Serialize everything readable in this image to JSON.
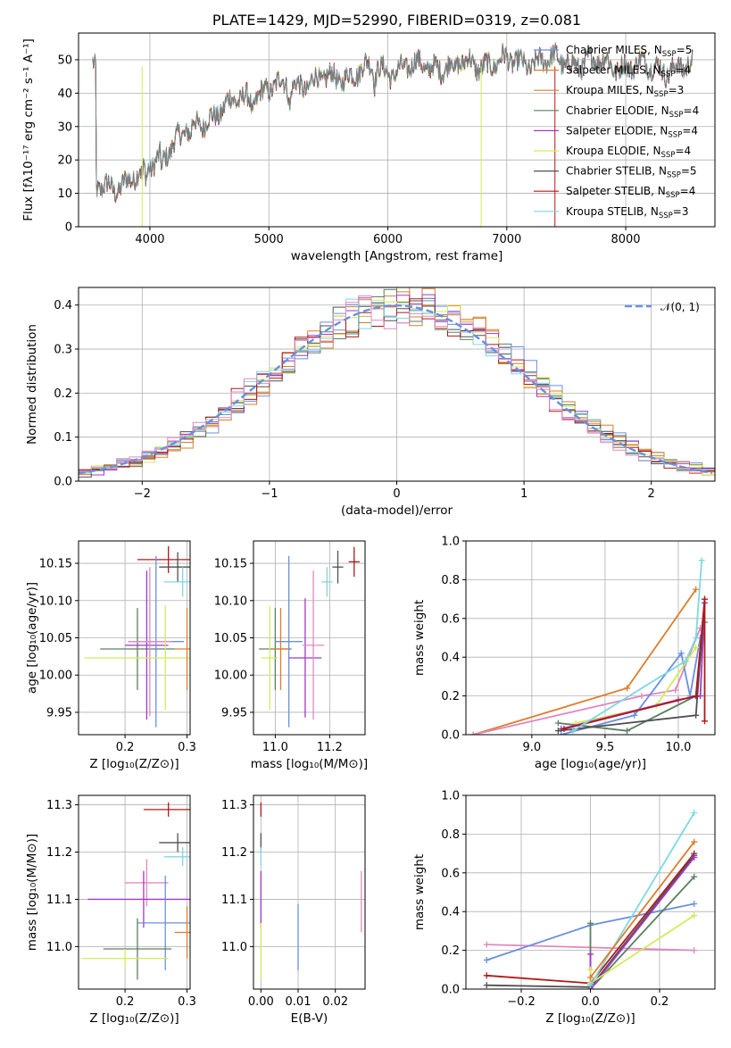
{
  "colors": {
    "Chabrier MILES": "#6a8fe0",
    "Salpeter MILES": "#e07b2a",
    "Kroupa MILES": "#c9862f",
    "Chabrier ELODIE": "#5a8060",
    "Salpeter ELODIE": "#a238c8",
    "Kroupa ELODIE": "#d4ea5a",
    "Chabrier STELIB": "#505050",
    "Salpeter STELIB": "#b01818",
    "Kroupa STELIB": "#7ed8e2",
    "pink": "#e387c0",
    "gauss": "#6a8fe0"
  },
  "chart_data": [
    {
      "id": "spectrum",
      "type": "line",
      "title": "PLATE=1429, MJD=52990, FIBERID=0319, z=0.081",
      "xlabel": "wavelength [Angstrom, rest frame]",
      "ylabel": "Flux [fλ10⁻¹⁷ erg cm⁻² s⁻¹ A⁻¹]",
      "xlim": [
        3400,
        8750
      ],
      "ylim": [
        0,
        58
      ],
      "xticks": [
        "4000",
        "5000",
        "6000",
        "7000",
        "8000"
      ],
      "yticks": [
        "0",
        "10",
        "20",
        "30",
        "40",
        "50"
      ],
      "legend_position": "top-right",
      "series": [
        {
          "name": "Chabrier MILES, N_SSP=5",
          "label": "Chabrier MILES, N",
          "sub": "SSP",
          "n": "=5",
          "color": "Chabrier MILES"
        },
        {
          "name": "Salpeter MILES, N_SSP=4",
          "label": "Salpeter MILES, N",
          "sub": "SSP",
          "n": "=4",
          "color": "Salpeter MILES"
        },
        {
          "name": "Kroupa MILES, N_SSP=3",
          "label": "Kroupa MILES, N",
          "sub": "SSP",
          "n": "=3",
          "color": "Kroupa MILES"
        },
        {
          "name": "Chabrier ELODIE, N_SSP=4",
          "label": "Chabrier ELODIE, N",
          "sub": "SSP",
          "n": "=4",
          "color": "Chabrier ELODIE"
        },
        {
          "name": "Salpeter ELODIE, N_SSP=4",
          "label": "Salpeter ELODIE, N",
          "sub": "SSP",
          "n": "=4",
          "color": "Salpeter ELODIE"
        },
        {
          "name": "Kroupa ELODIE, N_SSP=4",
          "label": "Kroupa ELODIE, N",
          "sub": "SSP",
          "n": "=4",
          "color": "Kroupa ELODIE"
        },
        {
          "name": "Chabrier STELIB, N_SSP=5",
          "label": "Chabrier STELIB, N",
          "sub": "SSP",
          "n": "=5",
          "color": "Chabrier STELIB"
        },
        {
          "name": "Salpeter STELIB, N_SSP=4",
          "label": "Salpeter STELIB, N",
          "sub": "SSP",
          "n": "=4",
          "color": "Salpeter STELIB"
        },
        {
          "name": "Kroupa STELIB, N_SSP=3",
          "label": "Kroupa STELIB, N",
          "sub": "SSP",
          "n": "=3",
          "color": "Kroupa STELIB"
        }
      ],
      "continuum": [
        [
          3550,
          11
        ],
        [
          3750,
          13
        ],
        [
          3900,
          15
        ],
        [
          4000,
          18
        ],
        [
          4100,
          22
        ],
        [
          4300,
          28
        ],
        [
          4500,
          33
        ],
        [
          4700,
          37
        ],
        [
          4900,
          40
        ],
        [
          5100,
          42
        ],
        [
          5300,
          43
        ],
        [
          5500,
          44
        ],
        [
          5800,
          47
        ],
        [
          6000,
          47
        ],
        [
          6300,
          48
        ],
        [
          6600,
          48.5
        ],
        [
          6900,
          49
        ],
        [
          7200,
          49.5
        ],
        [
          7500,
          49.5
        ],
        [
          7800,
          49
        ],
        [
          8100,
          48
        ],
        [
          8400,
          47.5
        ],
        [
          8750,
          47
        ]
      ]
    },
    {
      "id": "residuals",
      "type": "line",
      "xlabel": "(data-model)/error",
      "ylabel": "Normed distribution",
      "xlim": [
        -2.5,
        2.5
      ],
      "ylim": [
        0,
        0.44
      ],
      "xticks": [
        "−2",
        "−1",
        "0",
        "1",
        "2"
      ],
      "yticks": [
        "0.0",
        "0.1",
        "0.2",
        "0.3",
        "0.4"
      ],
      "legend": "𝒩(0, 1)",
      "legend_position": "top-right"
    },
    {
      "id": "age-vs-Z",
      "type": "scatter",
      "xlabel": "Z [log₁₀(Z/Z⊙)]",
      "ylabel": "age  [log₁₀(age/yr)]",
      "xlim": [
        0.125,
        0.305
      ],
      "ylim": [
        9.92,
        10.18
      ],
      "xticks": [
        "0.2",
        "0.3"
      ],
      "yticks": [
        "9.95",
        "10.00",
        "10.05",
        "10.10",
        "10.15"
      ],
      "points": [
        {
          "color": "Salpeter STELIB",
          "x": 0.27,
          "xerr": 0.05,
          "y": 10.155,
          "yerr": 0.018
        },
        {
          "color": "Chabrier STELIB",
          "x": 0.285,
          "xerr": 0.03,
          "y": 10.145,
          "yerr": 0.02
        },
        {
          "color": "Kroupa STELIB",
          "x": 0.293,
          "xerr": 0.03,
          "y": 10.125,
          "yerr": 0.02
        },
        {
          "color": "Chabrier ELODIE",
          "x": 0.22,
          "xerr": 0.06,
          "y": 10.035,
          "yerr": 0.055
        },
        {
          "color": "Salpeter ELODIE",
          "x": 0.235,
          "xerr": 0.035,
          "y": 10.04,
          "yerr": 0.1
        },
        {
          "color": "Chabrier MILES",
          "x": 0.25,
          "xerr": 0.045,
          "y": 10.045,
          "yerr": 0.115
        },
        {
          "color": "pink",
          "x": 0.24,
          "xerr": 0.035,
          "y": 10.045,
          "yerr": 0.1
        },
        {
          "color": "Kroupa ELODIE",
          "x": 0.265,
          "xerr": 0.13,
          "y": 10.023,
          "yerr": 0.07
        },
        {
          "color": "Salpeter MILES",
          "x": 0.3,
          "xerr": 0.02,
          "y": 10.035,
          "yerr": 0.055
        }
      ]
    },
    {
      "id": "age-vs-mass",
      "type": "scatter",
      "xlabel": "mass [log₁₀(M/M⊙)]",
      "ylabel": "",
      "xlim": [
        10.92,
        11.33
      ],
      "ylim": [
        9.92,
        10.18
      ],
      "xticks": [
        "11.0",
        "11.2"
      ],
      "yticks": [
        "9.95",
        "10.00",
        "10.05",
        "10.10",
        "10.15"
      ],
      "points": [
        {
          "color": "Salpeter STELIB",
          "x": 11.29,
          "xerr": 0.02,
          "y": 10.152,
          "yerr": 0.02
        },
        {
          "color": "Chabrier STELIB",
          "x": 11.23,
          "xerr": 0.02,
          "y": 10.145,
          "yerr": 0.022
        },
        {
          "color": "Kroupa STELIB",
          "x": 11.19,
          "xerr": 0.02,
          "y": 10.125,
          "yerr": 0.02
        },
        {
          "color": "Chabrier ELODIE",
          "x": 11.0,
          "xerr": 0.06,
          "y": 10.035,
          "yerr": 0.055
        },
        {
          "color": "Salpeter MILES",
          "x": 11.02,
          "xerr": 0.03,
          "y": 10.035,
          "yerr": 0.055
        },
        {
          "color": "Chabrier MILES",
          "x": 11.05,
          "xerr": 0.05,
          "y": 10.045,
          "yerr": 0.115
        },
        {
          "color": "Salpeter ELODIE",
          "x": 11.11,
          "xerr": 0.06,
          "y": 10.023,
          "yerr": 0.08
        },
        {
          "color": "pink",
          "x": 11.14,
          "xerr": 0.04,
          "y": 10.04,
          "yerr": 0.1
        },
        {
          "color": "Kroupa ELODIE",
          "x": 10.98,
          "xerr": 0.03,
          "y": 10.023,
          "yerr": 0.07
        }
      ]
    },
    {
      "id": "mass-weight-vs-age",
      "type": "line",
      "xlabel": "age  [log₁₀(age/yr)]",
      "ylabel": "mass weight",
      "xlim": [
        8.55,
        10.25
      ],
      "ylim": [
        0,
        1.0
      ],
      "xticks": [
        "9.0",
        "9.5",
        "10.0"
      ],
      "yticks": [
        "0.0",
        "0.2",
        "0.4",
        "0.6",
        "0.8",
        "1.0"
      ],
      "series": [
        {
          "color": "Salpeter MILES",
          "x": [
            8.6,
            9.65,
            10.12
          ],
          "y": [
            0.0,
            0.24,
            0.75
          ]
        },
        {
          "color": "pink",
          "x": [
            8.6,
            9.75,
            9.98,
            10.15
          ],
          "y": [
            0.0,
            0.2,
            0.23,
            0.55
          ]
        },
        {
          "color": "Chabrier MILES",
          "x": [
            9.2,
            9.7,
            10.02,
            10.08,
            10.15
          ],
          "y": [
            0.0,
            0.1,
            0.42,
            0.2,
            0.5
          ]
        },
        {
          "color": "Kroupa ELODIE",
          "x": [
            9.3,
            9.85,
            10.12
          ],
          "y": [
            0.06,
            0.15,
            0.45
          ]
        },
        {
          "color": "Chabrier ELODIE",
          "x": [
            9.18,
            9.65,
            10.12,
            10.18
          ],
          "y": [
            0.06,
            0.02,
            0.2,
            0.58
          ]
        },
        {
          "color": "Salpeter ELODIE",
          "x": [
            9.2,
            10.0,
            10.15,
            10.18
          ],
          "y": [
            0.03,
            0.18,
            0.2,
            0.68
          ]
        },
        {
          "color": "Chabrier STELIB",
          "x": [
            9.18,
            10.12,
            10.18
          ],
          "y": [
            0.02,
            0.1,
            0.7
          ]
        },
        {
          "color": "Salpeter STELIB",
          "x": [
            9.22,
            10.12,
            10.18,
            10.18
          ],
          "y": [
            0.03,
            0.2,
            0.7,
            0.07
          ]
        },
        {
          "color": "Kroupa STELIB",
          "x": [
            9.28,
            10.05,
            10.12,
            10.16
          ],
          "y": [
            0.02,
            0.38,
            0.5,
            0.9
          ]
        }
      ]
    },
    {
      "id": "mass-vs-Z",
      "type": "scatter",
      "xlabel": "Z [log₁₀(Z/Z⊙)]",
      "ylabel": "mass [log₁₀(M/M⊙)]",
      "xlim": [
        0.125,
        0.305
      ],
      "ylim": [
        10.91,
        11.32
      ],
      "xticks": [
        "0.2",
        "0.3"
      ],
      "yticks": [
        "11.0",
        "11.1",
        "11.2",
        "11.3"
      ],
      "points": [
        {
          "color": "Salpeter STELIB",
          "x": 0.27,
          "xerr": 0.04,
          "y": 11.29,
          "yerr": 0.015
        },
        {
          "color": "Chabrier STELIB",
          "x": 0.285,
          "xerr": 0.03,
          "y": 11.22,
          "yerr": 0.02
        },
        {
          "color": "Kroupa STELIB",
          "x": 0.293,
          "xerr": 0.03,
          "y": 11.19,
          "yerr": 0.02
        },
        {
          "color": "pink",
          "x": 0.235,
          "xerr": 0.035,
          "y": 11.135,
          "yerr": 0.05
        },
        {
          "color": "Salpeter ELODIE",
          "x": 0.23,
          "xerr": 0.09,
          "y": 11.1,
          "yerr": 0.06
        },
        {
          "color": "Chabrier MILES",
          "x": 0.265,
          "xerr": 0.045,
          "y": 11.05,
          "yerr": 0.1
        },
        {
          "color": "Chabrier ELODIE",
          "x": 0.22,
          "xerr": 0.055,
          "y": 10.995,
          "yerr": 0.065
        },
        {
          "color": "Salpeter MILES",
          "x": 0.3,
          "xerr": 0.02,
          "y": 11.03,
          "yerr": 0.055
        },
        {
          "color": "Kroupa ELODIE",
          "x": 0.2,
          "xerr": 0.07,
          "y": 10.975,
          "yerr": 0.02
        }
      ]
    },
    {
      "id": "mass-vs-EBV",
      "type": "scatter",
      "xlabel": "E(B-V)",
      "ylabel": "",
      "xlim": [
        -0.002,
        0.028
      ],
      "ylim": [
        10.91,
        11.32
      ],
      "xticks": [
        "0.00",
        "0.01",
        "0.02"
      ],
      "yticks": [
        "11.0",
        "11.1",
        "11.2",
        "11.3"
      ],
      "points": [
        {
          "color": "Salpeter STELIB",
          "x": 0.0,
          "xerr": 0,
          "y": 11.29,
          "yerr": 0.015
        },
        {
          "color": "Chabrier STELIB",
          "x": 0.0,
          "xerr": 0,
          "y": 11.22,
          "yerr": 0.02
        },
        {
          "color": "Kroupa STELIB",
          "x": 0.0,
          "xerr": 0,
          "y": 11.19,
          "yerr": 0.02
        },
        {
          "color": "Salpeter ELODIE",
          "x": 0.0,
          "xerr": 0,
          "y": 11.1,
          "yerr": 0.06
        },
        {
          "color": "Kroupa ELODIE",
          "x": 0.0,
          "xerr": 0,
          "y": 10.99,
          "yerr": 0.06
        },
        {
          "color": "Chabrier MILES",
          "x": 0.01,
          "xerr": 0,
          "y": 11.02,
          "yerr": 0.07
        },
        {
          "color": "pink",
          "x": 0.027,
          "xerr": 0,
          "y": 11.095,
          "yerr": 0.065
        }
      ]
    },
    {
      "id": "mass-weight-vs-Z",
      "type": "line",
      "xlabel": "Z [log₁₀(Z/Z⊙)]",
      "ylabel": "mass weight",
      "xlim": [
        -0.36,
        0.36
      ],
      "ylim": [
        0,
        1.0
      ],
      "xticks": [
        "−0.2",
        "0.0",
        "0.2"
      ],
      "yticks": [
        "0.0",
        "0.2",
        "0.4",
        "0.6",
        "0.8",
        "1.0"
      ],
      "series": [
        {
          "color": "pink",
          "x": [
            -0.3,
            0.3
          ],
          "y": [
            0.23,
            0.2
          ]
        },
        {
          "color": "Chabrier MILES",
          "x": [
            -0.3,
            0.0,
            0.3
          ],
          "y": [
            0.15,
            0.33,
            0.44
          ]
        },
        {
          "color": "Salpeter STELIB",
          "x": [
            -0.3,
            0.0,
            0.3
          ],
          "y": [
            0.07,
            0.03,
            0.7
          ]
        },
        {
          "color": "Chabrier STELIB",
          "x": [
            -0.3,
            0.0,
            0.3
          ],
          "y": [
            0.02,
            0.01,
            0.69
          ]
        },
        {
          "color": "Chabrier ELODIE",
          "x": [
            0.0,
            0.0,
            0.3
          ],
          "y": [
            0.34,
            0.0,
            0.58
          ]
        },
        {
          "color": "Salpeter ELODIE",
          "x": [
            0.0,
            0.0,
            0.3
          ],
          "y": [
            0.18,
            0.0,
            0.68
          ]
        },
        {
          "color": "Kroupa ELODIE",
          "x": [
            0.0,
            0.0,
            0.3
          ],
          "y": [
            0.1,
            0.03,
            0.38
          ]
        },
        {
          "color": "Kroupa STELIB",
          "x": [
            0.0,
            0.3
          ],
          "y": [
            0.02,
            0.91
          ]
        },
        {
          "color": "Salpeter MILES",
          "x": [
            0.0,
            0.3
          ],
          "y": [
            0.06,
            0.76
          ]
        }
      ]
    }
  ]
}
